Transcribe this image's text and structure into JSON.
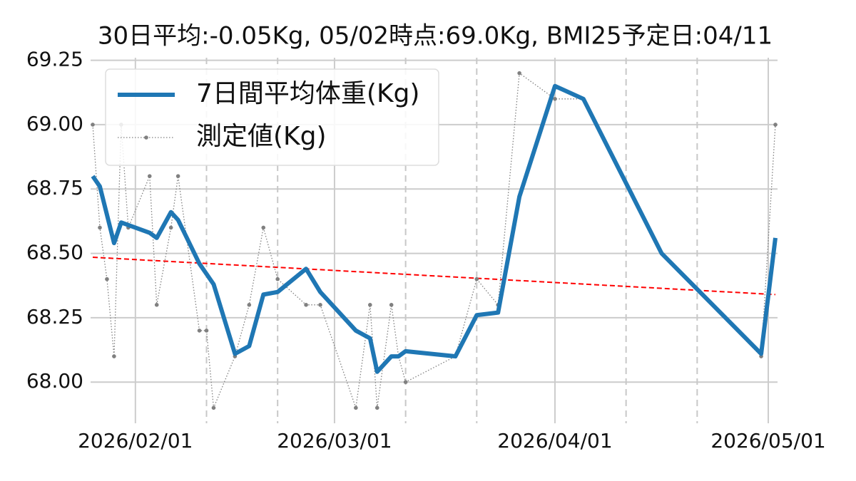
{
  "chart_data": {
    "type": "line",
    "title": "30日平均:-0.05Kg, 05/02時点:69.0Kg, BMI25予定日:04/11",
    "x": [
      "2026-01-26",
      "2026-01-27",
      "2026-01-28",
      "2026-01-29",
      "2026-01-30",
      "2026-01-31",
      "2026-02-03",
      "2026-02-04",
      "2026-02-06",
      "2026-02-07",
      "2026-02-10",
      "2026-02-11",
      "2026-02-12",
      "2026-02-15",
      "2026-02-17",
      "2026-02-19",
      "2026-02-21",
      "2026-02-25",
      "2026-02-27",
      "2026-03-04",
      "2026-03-06",
      "2026-03-07",
      "2026-03-09",
      "2026-03-10",
      "2026-03-11",
      "2026-03-18",
      "2026-03-21",
      "2026-03-24",
      "2026-03-27",
      "2026-04-01",
      "2026-04-05",
      "2026-04-16",
      "2026-04-30",
      "2026-05-02"
    ],
    "series": [
      {
        "name": "7日間平均体重(Kg)",
        "color": "#1f77b4",
        "style": "solid",
        "values": [
          68.8,
          68.76,
          68.65,
          68.54,
          68.62,
          68.61,
          68.58,
          68.56,
          68.66,
          68.63,
          68.46,
          68.42,
          68.38,
          68.11,
          68.14,
          68.34,
          68.35,
          68.44,
          68.35,
          68.2,
          68.17,
          68.04,
          68.1,
          68.1,
          68.12,
          68.1,
          68.26,
          68.27,
          68.72,
          69.15,
          69.1,
          68.5,
          68.11,
          68.56
        ]
      },
      {
        "name": "測定値(Kg)",
        "color": "#808080",
        "style": "dotted",
        "values": [
          69.0,
          68.6,
          68.4,
          68.1,
          69.0,
          68.6,
          68.8,
          68.3,
          68.6,
          68.8,
          68.2,
          68.2,
          67.9,
          68.1,
          68.3,
          68.6,
          68.4,
          68.3,
          68.3,
          67.9,
          68.3,
          67.9,
          68.3,
          68.1,
          68.0,
          68.1,
          68.4,
          68.3,
          69.2,
          69.1,
          69.1,
          68.5,
          68.1,
          69.0
        ]
      }
    ],
    "trend_line": {
      "x": [
        "2026-01-26",
        "2026-05-02"
      ],
      "values": [
        68.485,
        68.34
      ],
      "color": "#ff0000"
    },
    "xlim": [
      "2026-01-26",
      "2026-05-02"
    ],
    "xticks": [
      {
        "value": "2026-02-01",
        "label": "2026/02/01"
      },
      {
        "value": "2026-03-01",
        "label": "2026/03/01"
      },
      {
        "value": "2026-04-01",
        "label": "2026/04/01"
      },
      {
        "value": "2026-05-01",
        "label": "2026/05/01"
      }
    ],
    "minor_xticks": [
      "2026-02-11",
      "2026-02-21",
      "2026-03-11",
      "2026-03-21",
      "2026-04-11",
      "2026-04-21"
    ],
    "ylim": [
      67.84,
      69.26
    ],
    "yticks": [
      {
        "value": 68,
        "label": "68.00"
      },
      68.25,
      {
        "value": 68.5,
        "label": "68.50"
      },
      68.75,
      {
        "value": 69,
        "label": "69.00"
      },
      69.25
    ],
    "grid": true,
    "legend": "upper left"
  }
}
